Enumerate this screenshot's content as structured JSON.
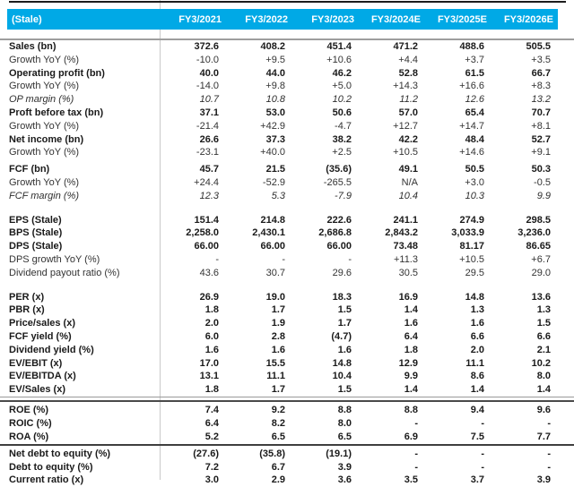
{
  "colors": {
    "header_bg": "#00A9E6",
    "header_text": "#FFFFFF"
  },
  "table": {
    "corner_label": "(Stale)",
    "columns": [
      "FY3/2021",
      "FY3/2022",
      "FY3/2023",
      "FY3/2024E",
      "FY3/2025E",
      "FY3/2026E"
    ],
    "sections": [
      {
        "divider_before": "none",
        "rows": [
          {
            "label": "Sales (bn)",
            "emphasis": "bold",
            "values": [
              "372.6",
              "408.2",
              "451.4",
              "471.2",
              "488.6",
              "505.5"
            ]
          },
          {
            "label": "Growth YoY (%)",
            "emphasis": "normal",
            "values": [
              "-10.0",
              "+9.5",
              "+10.6",
              "+4.4",
              "+3.7",
              "+3.5"
            ]
          },
          {
            "label": "Operating profit (bn)",
            "emphasis": "bold",
            "values": [
              "40.0",
              "44.0",
              "46.2",
              "52.8",
              "61.5",
              "66.7"
            ]
          },
          {
            "label": "Growth YoY (%)",
            "emphasis": "normal",
            "values": [
              "-14.0",
              "+9.8",
              "+5.0",
              "+14.3",
              "+16.6",
              "+8.3"
            ]
          },
          {
            "label": "OP margin (%)",
            "emphasis": "italic",
            "values": [
              "10.7",
              "10.8",
              "10.2",
              "11.2",
              "12.6",
              "13.2"
            ]
          },
          {
            "label": "Proft before tax (bn)",
            "emphasis": "bold",
            "values": [
              "37.1",
              "53.0",
              "50.6",
              "57.0",
              "65.4",
              "70.7"
            ]
          },
          {
            "label": "Growth YoY (%)",
            "emphasis": "normal",
            "values": [
              "-21.4",
              "+42.9",
              "-4.7",
              "+12.7",
              "+14.7",
              "+8.1"
            ]
          },
          {
            "label": "Net income (bn)",
            "emphasis": "bold",
            "values": [
              "26.6",
              "37.3",
              "38.2",
              "42.2",
              "48.4",
              "52.7"
            ]
          },
          {
            "label": "Growth YoY (%)",
            "emphasis": "normal",
            "values": [
              "-23.1",
              "+40.0",
              "+2.5",
              "+10.5",
              "+14.6",
              "+9.1"
            ]
          }
        ]
      },
      {
        "divider_before": "small-gap",
        "rows": [
          {
            "label": "FCF (bn)",
            "emphasis": "bold",
            "values": [
              "45.7",
              "21.5",
              "(35.6)",
              "49.1",
              "50.5",
              "50.3"
            ]
          },
          {
            "label": "Growth YoY (%)",
            "emphasis": "normal",
            "values": [
              "+24.4",
              "-52.9",
              "-265.5",
              "N/A",
              "+3.0",
              "-0.5"
            ]
          },
          {
            "label": "FCF margin (%)",
            "emphasis": "italic",
            "values": [
              "12.3",
              "5.3",
              "-7.9",
              "10.4",
              "10.3",
              "9.9"
            ]
          }
        ]
      },
      {
        "divider_before": "blank-row",
        "rows": [
          {
            "label": "EPS (Stale)",
            "emphasis": "bold",
            "values": [
              "151.4",
              "214.8",
              "222.6",
              "241.1",
              "274.9",
              "298.5"
            ]
          },
          {
            "label": "BPS (Stale)",
            "emphasis": "bold",
            "values": [
              "2,258.0",
              "2,430.1",
              "2,686.8",
              "2,843.2",
              "3,033.9",
              "3,236.0"
            ]
          },
          {
            "label": "DPS (Stale)",
            "emphasis": "bold",
            "values": [
              "66.00",
              "66.00",
              "66.00",
              "73.48",
              "81.17",
              "86.65"
            ]
          },
          {
            "label": "DPS growth YoY (%)",
            "emphasis": "normal",
            "values": [
              "-",
              "-",
              "-",
              "+11.3",
              "+10.5",
              "+6.7"
            ]
          },
          {
            "label": "Dividend payout ratio (%)",
            "emphasis": "normal",
            "values": [
              "43.6",
              "30.7",
              "29.6",
              "30.5",
              "29.5",
              "29.0"
            ]
          }
        ]
      },
      {
        "divider_before": "blank-row",
        "rows": [
          {
            "label": "PER (x)",
            "emphasis": "bold",
            "values": [
              "26.9",
              "19.0",
              "18.3",
              "16.9",
              "14.8",
              "13.6"
            ]
          },
          {
            "label": "PBR (x)",
            "emphasis": "bold",
            "values": [
              "1.8",
              "1.7",
              "1.5",
              "1.4",
              "1.3",
              "1.3"
            ]
          },
          {
            "label": "Price/sales (x)",
            "emphasis": "bold",
            "values": [
              "2.0",
              "1.9",
              "1.7",
              "1.6",
              "1.6",
              "1.5"
            ]
          },
          {
            "label": "FCF yield (%)",
            "emphasis": "bold",
            "values": [
              "6.0",
              "2.8",
              "(4.7)",
              "6.4",
              "6.6",
              "6.6"
            ]
          },
          {
            "label": "Dividend yield (%)",
            "emphasis": "bold",
            "values": [
              "1.6",
              "1.6",
              "1.6",
              "1.8",
              "2.0",
              "2.1"
            ]
          },
          {
            "label": "EV/EBIT (x)",
            "emphasis": "bold",
            "values": [
              "17.0",
              "15.5",
              "14.8",
              "12.9",
              "11.1",
              "10.2"
            ]
          },
          {
            "label": "EV/EBITDA (x)",
            "emphasis": "bold",
            "values": [
              "13.1",
              "11.1",
              "10.4",
              "9.9",
              "8.6",
              "8.0"
            ]
          },
          {
            "label": "EV/Sales (x)",
            "emphasis": "bold",
            "values": [
              "1.8",
              "1.7",
              "1.5",
              "1.4",
              "1.4",
              "1.4"
            ]
          }
        ]
      },
      {
        "divider_before": "thick-rule",
        "rows": [
          {
            "label": "ROE (%)",
            "emphasis": "bold",
            "values": [
              "7.4",
              "9.2",
              "8.8",
              "8.8",
              "9.4",
              "9.6"
            ]
          },
          {
            "label": "ROIC (%)",
            "emphasis": "bold",
            "values": [
              "6.4",
              "8.2",
              "8.0",
              "-",
              "-",
              "-"
            ]
          },
          {
            "label": "ROA (%)",
            "emphasis": "bold",
            "values": [
              "5.2",
              "6.5",
              "6.5",
              "6.9",
              "7.5",
              "7.7"
            ]
          }
        ]
      },
      {
        "divider_before": "thin-rule",
        "rows": [
          {
            "label": "Net debt to equity (%)",
            "emphasis": "bold",
            "values": [
              "(27.6)",
              "(35.8)",
              "(19.1)",
              "-",
              "-",
              "-"
            ]
          },
          {
            "label": "Debt to equity (%)",
            "emphasis": "bold",
            "values": [
              "7.2",
              "6.7",
              "3.9",
              "-",
              "-",
              "-"
            ]
          },
          {
            "label": "Current ratio (x)",
            "emphasis": "bold",
            "values": [
              "3.0",
              "2.9",
              "3.6",
              "3.5",
              "3.7",
              "3.9"
            ]
          }
        ]
      }
    ]
  }
}
